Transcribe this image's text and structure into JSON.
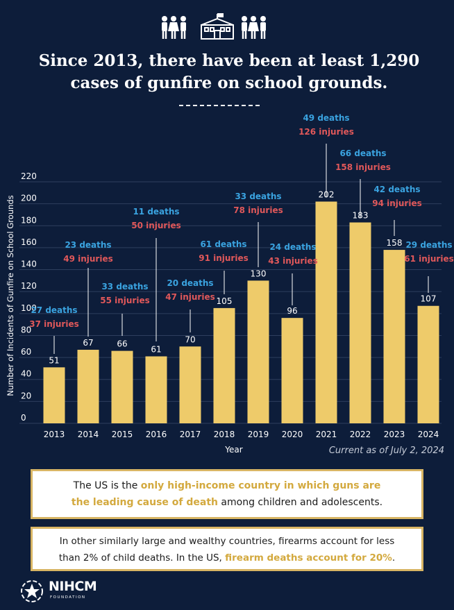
{
  "headline": {
    "line1": "Since 2013, there have been at least 1,290",
    "line2": "cases of gunfire on school grounds."
  },
  "chart_data": {
    "type": "bar",
    "categories": [
      "2013",
      "2014",
      "2015",
      "2016",
      "2017",
      "2018",
      "2019",
      "2020",
      "2021",
      "2022",
      "2023",
      "2024"
    ],
    "values": [
      51,
      67,
      66,
      61,
      70,
      105,
      130,
      96,
      202,
      183,
      158,
      107
    ],
    "deaths": [
      "27 deaths",
      "23 deaths",
      "33 deaths",
      "11 deaths",
      "20 deaths",
      "61 deaths",
      "33 deaths",
      "24 deaths",
      "49 deaths",
      "66 deaths",
      "42 deaths",
      "29 deaths"
    ],
    "injuries": [
      "37 injuries",
      "49 injuries",
      "55 injuries",
      "50 injuries",
      "47 injuries",
      "91 injuries",
      "78 injuries",
      "43 injuries",
      "126 injuries",
      "158 injuries",
      "94 injuries",
      "61 injuries"
    ],
    "xlabel": "Year",
    "ylabel": "Number of Incidents of Gunfire on School Grounds",
    "ylim": [
      0,
      220
    ],
    "yticks": [
      0,
      20,
      40,
      60,
      80,
      100,
      120,
      140,
      160,
      180,
      200,
      220
    ],
    "grid": true
  },
  "note": "Current as of July 2, 2024",
  "box1": {
    "pre": "The US is the ",
    "highlight1": "only high-income country in which guns are",
    "highlight2": "the leading cause of death",
    "post": " among children and adolescents."
  },
  "box2": {
    "line1": "In other similarly large and wealthy countries, firearms account for less",
    "pre": "than 2% of child deaths. In the US, ",
    "highlight": "firearm deaths account for 20%",
    "post": "."
  },
  "logo": {
    "name": "NIHCM",
    "sub": "FOUNDATION"
  },
  "colors": {
    "background": "#0d1d3a",
    "bar": "#eecb6a",
    "deaths": "#3aa3e0",
    "injuries": "#e0585a",
    "highlight": "#d3a93e"
  }
}
